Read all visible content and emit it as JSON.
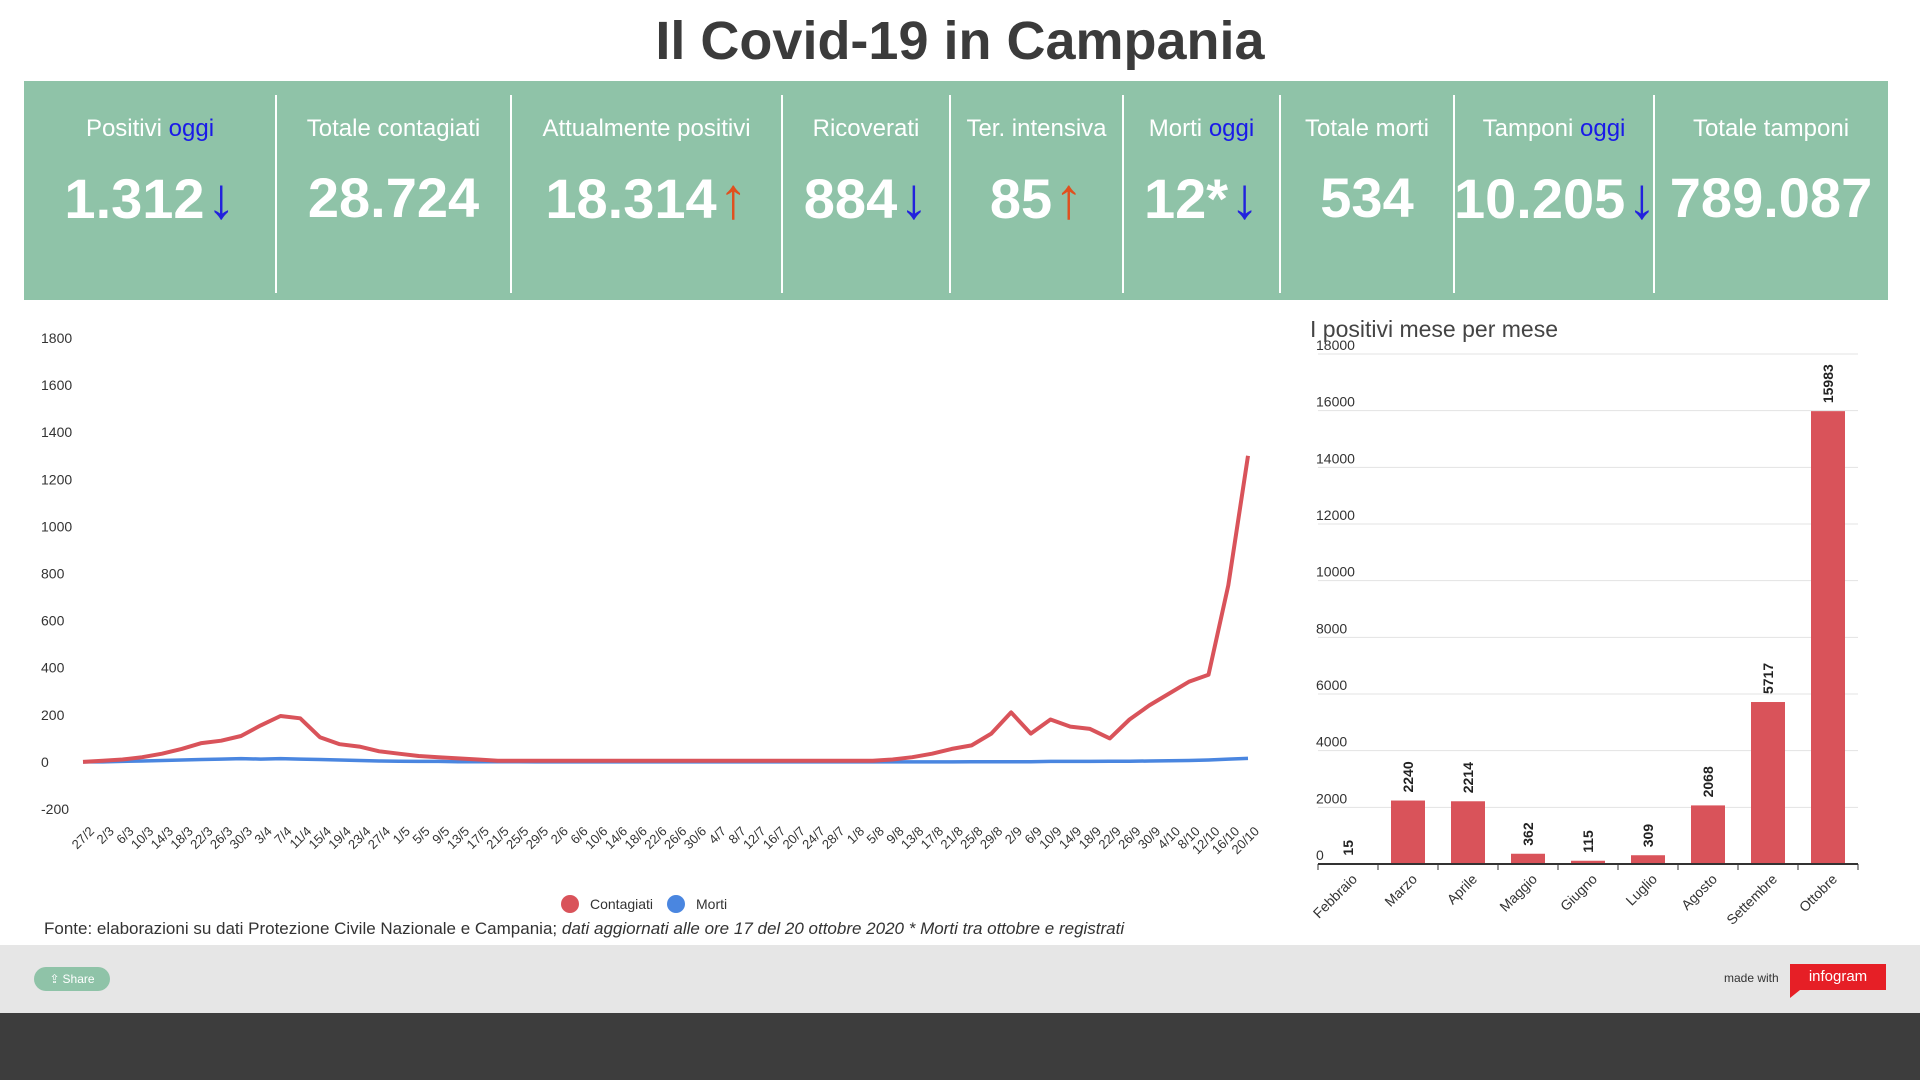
{
  "title": "Il Covid-19 in Campania",
  "stats": [
    {
      "label": "Positivi",
      "highlight": "oggi",
      "value": "1.312",
      "trend": "down"
    },
    {
      "label": "Totale contagiati",
      "highlight": "",
      "value": "28.724",
      "trend": ""
    },
    {
      "label": "Attualmente positivi",
      "highlight": "",
      "value": "18.314",
      "trend": "up"
    },
    {
      "label": "Ricoverati",
      "highlight": "",
      "value": "884",
      "trend": "down"
    },
    {
      "label": "Ter. intensiva",
      "highlight": "",
      "value": "85",
      "trend": "up"
    },
    {
      "label": "Morti",
      "highlight": "oggi",
      "value": "12*",
      "trend": "down"
    },
    {
      "label": "Totale morti",
      "highlight": "",
      "value": "534",
      "trend": ""
    },
    {
      "label": "Tamponi",
      "highlight": "oggi",
      "value": "10.205",
      "trend": "down"
    },
    {
      "label": "Totale tamponi",
      "highlight": "",
      "value": "789.087",
      "trend": ""
    }
  ],
  "chart_data": [
    {
      "type": "line",
      "ylim": [
        -200,
        1800
      ],
      "yticks": [
        -200,
        0,
        200,
        400,
        600,
        800,
        1000,
        1200,
        1400,
        1600,
        1800
      ],
      "grid": false,
      "legend": "bottom-center",
      "x_tick_labels": [
        "27/2",
        "2/3",
        "6/3",
        "10/3",
        "14/3",
        "18/3",
        "22/3",
        "26/3",
        "30/3",
        "3/4",
        "7/4",
        "11/4",
        "15/4",
        "19/4",
        "23/4",
        "27/4",
        "1/5",
        "5/5",
        "9/5",
        "13/5",
        "17/5",
        "21/5",
        "25/5",
        "29/5",
        "2/6",
        "6/6",
        "10/6",
        "14/6",
        "18/6",
        "22/6",
        "26/6",
        "30/6",
        "4/7",
        "8/7",
        "12/7",
        "16/7",
        "20/7",
        "24/7",
        "28/7",
        "1/8",
        "5/8",
        "9/8",
        "13/8",
        "17/8",
        "21/8",
        "25/8",
        "29/8",
        "2/9",
        "6/9",
        "10/9",
        "14/9",
        "18/9",
        "22/9",
        "26/9",
        "30/9",
        "4/10",
        "8/10",
        "12/10",
        "16/10",
        "20/10"
      ],
      "series": [
        {
          "name": "Contagiati",
          "color": "#d9535a",
          "values": [
            0,
            5,
            10,
            20,
            35,
            55,
            80,
            90,
            110,
            155,
            195,
            185,
            105,
            75,
            65,
            45,
            35,
            25,
            20,
            15,
            10,
            5,
            5,
            5,
            5,
            5,
            5,
            5,
            5,
            5,
            5,
            5,
            5,
            5,
            5,
            5,
            5,
            5,
            5,
            5,
            5,
            10,
            20,
            35,
            55,
            70,
            120,
            210,
            120,
            180,
            150,
            140,
            100,
            180,
            240,
            290,
            340,
            370,
            750,
            1300
          ]
        },
        {
          "name": "Morti",
          "color": "#4a86e0",
          "values": [
            0,
            0,
            2,
            4,
            6,
            8,
            10,
            12,
            14,
            12,
            14,
            12,
            10,
            8,
            6,
            4,
            3,
            2,
            2,
            1,
            1,
            1,
            1,
            0,
            0,
            0,
            0,
            0,
            0,
            0,
            0,
            0,
            0,
            0,
            0,
            0,
            0,
            0,
            0,
            0,
            0,
            0,
            0,
            0,
            0,
            1,
            1,
            1,
            1,
            2,
            2,
            2,
            3,
            3,
            4,
            5,
            6,
            8,
            12,
            15
          ]
        }
      ]
    },
    {
      "type": "bar",
      "title": "I positivi mese per mese",
      "categories": [
        "Febbraio",
        "Marzo",
        "Aprile",
        "Maggio",
        "Giugno",
        "Luglio",
        "Agosto",
        "Settembre",
        "Ottobre"
      ],
      "values": [
        15,
        2240,
        2214,
        362,
        115,
        309,
        2068,
        5717,
        15983
      ],
      "color": "#d9535a",
      "ylim": [
        0,
        18000
      ],
      "yticks": [
        0,
        2000,
        4000,
        6000,
        8000,
        10000,
        12000,
        14000,
        16000,
        18000
      ],
      "grid": true
    }
  ],
  "source": {
    "text": "Fonte: elaborazioni su dati Protezione Civile Nazionale e Campania;",
    "note": "dati aggiornati alle ore 17 del 20 ottobre 2020 * Morti tra ottobre e registrati"
  },
  "footer": {
    "share_label": "Share",
    "made_with": "made with",
    "brand": "infogram"
  }
}
